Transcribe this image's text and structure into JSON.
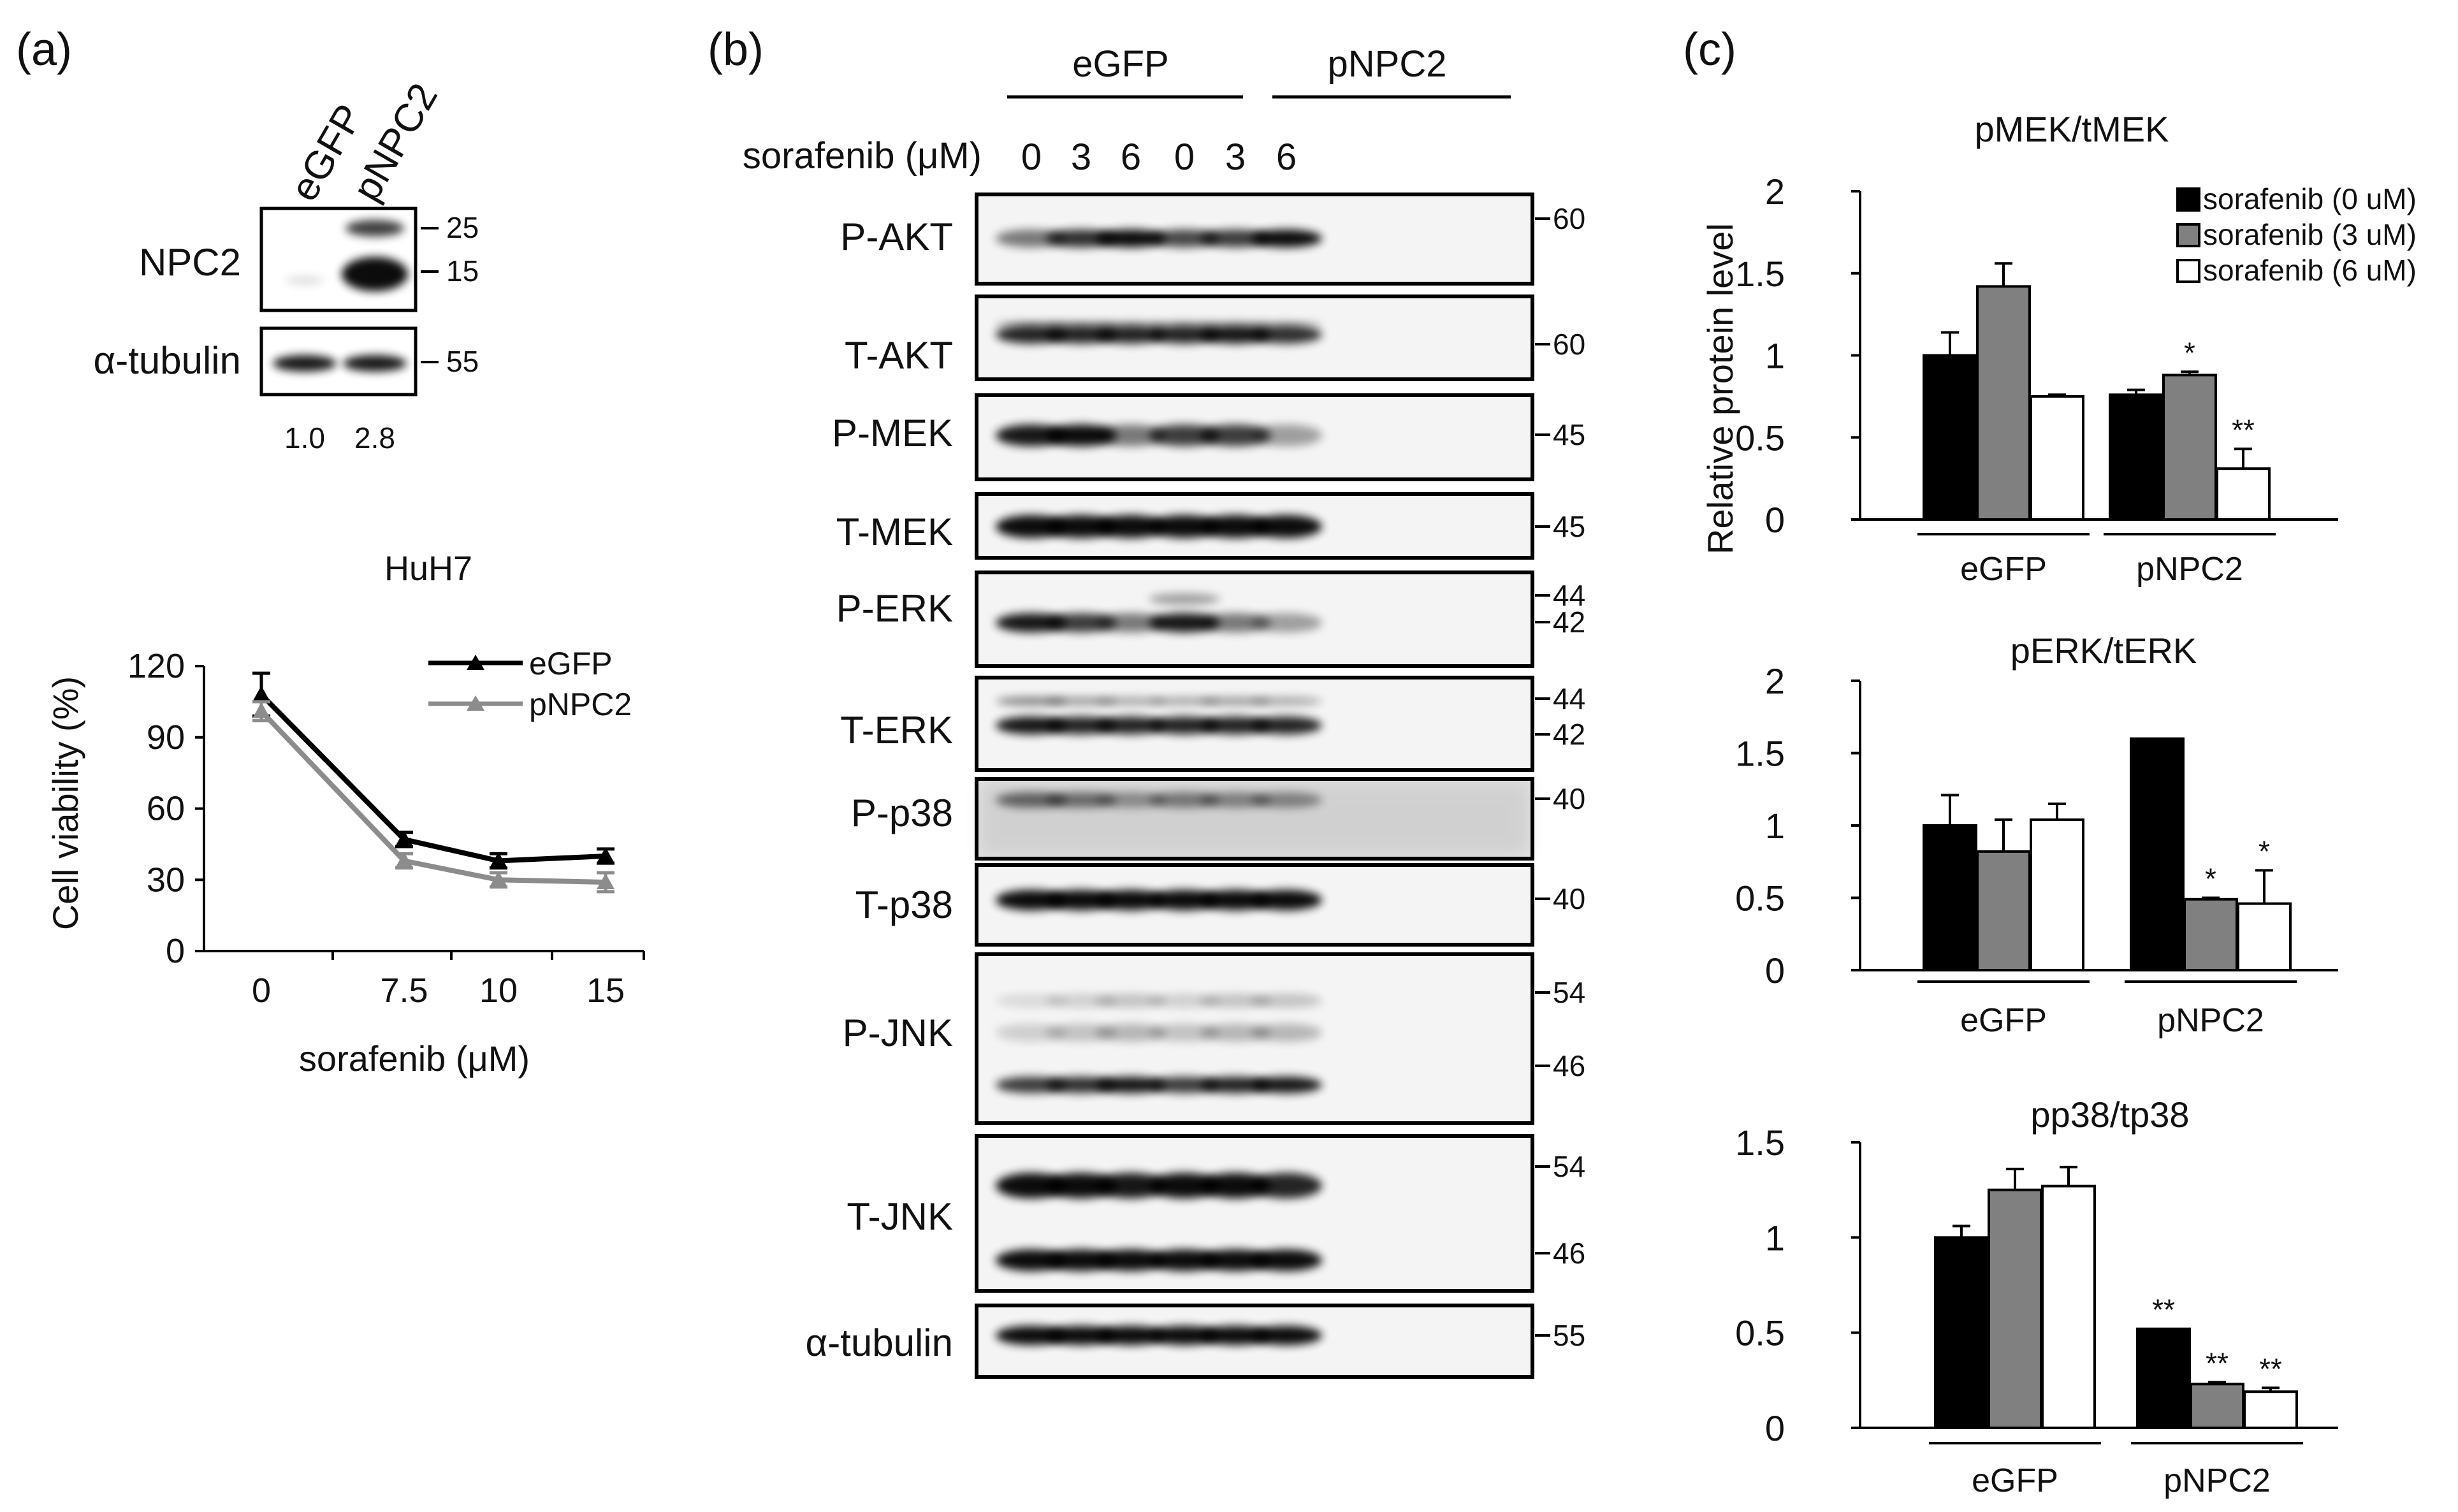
{
  "panel_a": {
    "label": "(a)",
    "lanes": [
      "eGFP",
      "pNPC2"
    ],
    "blots": [
      {
        "name": "NPC2",
        "mw": [
          "25",
          "15"
        ]
      },
      {
        "name": "α-tubulin",
        "mw": [
          "55"
        ]
      }
    ],
    "quant": [
      "1.0",
      "2.8"
    ]
  },
  "panel_b": {
    "label": "(b)",
    "groups": [
      "eGFP",
      "pNPC2"
    ],
    "treatment_label": "sorafenib (μM)",
    "doses": [
      "0",
      "3",
      "6",
      "0",
      "3",
      "6"
    ],
    "blots": [
      {
        "name": "P-AKT",
        "mw": [
          "60"
        ]
      },
      {
        "name": "T-AKT",
        "mw": [
          "60"
        ]
      },
      {
        "name": "P-MEK",
        "mw": [
          "45"
        ]
      },
      {
        "name": "T-MEK",
        "mw": [
          "45"
        ]
      },
      {
        "name": "P-ERK",
        "mw": [
          "44",
          "42"
        ]
      },
      {
        "name": "T-ERK",
        "mw": [
          "44",
          "42"
        ]
      },
      {
        "name": "P-p38",
        "mw": [
          "40"
        ]
      },
      {
        "name": "T-p38",
        "mw": [
          "40"
        ]
      },
      {
        "name": "P-JNK",
        "mw": [
          "54",
          "46"
        ]
      },
      {
        "name": "T-JNK",
        "mw": [
          "54",
          "46"
        ]
      },
      {
        "name": "α-tubulin",
        "mw": [
          "55"
        ]
      }
    ]
  },
  "panel_c": {
    "label": "(c)",
    "ylabel": "Relative protein level",
    "legend": [
      "sorafenib (0 uM)",
      "sorafenib (3 uM)",
      "sorafenib (6 uM)"
    ]
  },
  "colors": {
    "black": "#000000",
    "gray": "#808080",
    "white": "#ffffff",
    "line_gray": "#8c8c8c"
  },
  "chart_data": [
    {
      "type": "line",
      "title": "HuH7",
      "xlabel": "sorafenib (μM)",
      "ylabel": "Cell viability (%)",
      "categories": [
        "0",
        "7.5",
        "10",
        "15"
      ],
      "ylim": [
        0,
        120
      ],
      "yticks": [
        0,
        30,
        60,
        90,
        120
      ],
      "legend_position": "top-right",
      "series": [
        {
          "name": "eGFP",
          "values": [
            108,
            47,
            38,
            40
          ],
          "errors": [
            9,
            3,
            3,
            3
          ]
        },
        {
          "name": "pNPC2",
          "values": [
            101,
            38,
            30,
            29
          ],
          "errors": [
            4,
            3,
            3,
            4
          ]
        }
      ]
    },
    {
      "type": "bar",
      "title": "pMEK/tMEK",
      "categories": [
        "eGFP",
        "pNPC2"
      ],
      "ylim": [
        0,
        2
      ],
      "yticks": [
        "0",
        "0.5",
        "1",
        "1.5",
        "2"
      ],
      "legend_position": "top-right",
      "series": [
        {
          "name": "sorafenib (0 uM)",
          "values": [
            1.0,
            0.76
          ],
          "errors": [
            0.14,
            0.03
          ],
          "marks": [
            "",
            ""
          ]
        },
        {
          "name": "sorafenib (3 uM)",
          "values": [
            1.42,
            0.88
          ],
          "errors": [
            0.14,
            0.02
          ],
          "marks": [
            "",
            "*"
          ]
        },
        {
          "name": "sorafenib (6 uM)",
          "values": [
            0.75,
            0.31
          ],
          "errors": [
            0.01,
            0.12
          ],
          "marks": [
            "",
            "**"
          ]
        }
      ]
    },
    {
      "type": "bar",
      "title": "pERK/tERK",
      "categories": [
        "eGFP",
        "pNPC2"
      ],
      "ylim": [
        0,
        2
      ],
      "yticks": [
        "0",
        "0.5",
        "1",
        "1.5",
        "2"
      ],
      "series": [
        {
          "name": "sorafenib (0 uM)",
          "values": [
            1.0,
            1.6
          ],
          "errors": [
            0.21,
            0.0
          ],
          "marks": [
            "",
            ""
          ]
        },
        {
          "name": "sorafenib (3 uM)",
          "values": [
            0.82,
            0.49
          ],
          "errors": [
            0.22,
            0.01
          ],
          "marks": [
            "",
            "*"
          ]
        },
        {
          "name": "sorafenib (6 uM)",
          "values": [
            1.04,
            0.46
          ],
          "errors": [
            0.11,
            0.23
          ],
          "marks": [
            "",
            "*"
          ]
        }
      ]
    },
    {
      "type": "bar",
      "title": "pp38/tp38",
      "categories": [
        "eGFP",
        "pNPC2"
      ],
      "ylim": [
        0,
        1.5
      ],
      "yticks": [
        "0",
        "0.5",
        "1",
        "1.5"
      ],
      "series": [
        {
          "name": "sorafenib (0 uM)",
          "values": [
            1.0,
            0.52
          ],
          "errors": [
            0.06,
            0.0
          ],
          "marks": [
            "",
            "**"
          ]
        },
        {
          "name": "sorafenib (3 uM)",
          "values": [
            1.25,
            0.23
          ],
          "errors": [
            0.11,
            0.01
          ],
          "marks": [
            "",
            "**"
          ]
        },
        {
          "name": "sorafenib (6 uM)",
          "values": [
            1.27,
            0.19
          ],
          "errors": [
            0.1,
            0.02
          ],
          "marks": [
            "",
            "**"
          ]
        }
      ]
    }
  ]
}
